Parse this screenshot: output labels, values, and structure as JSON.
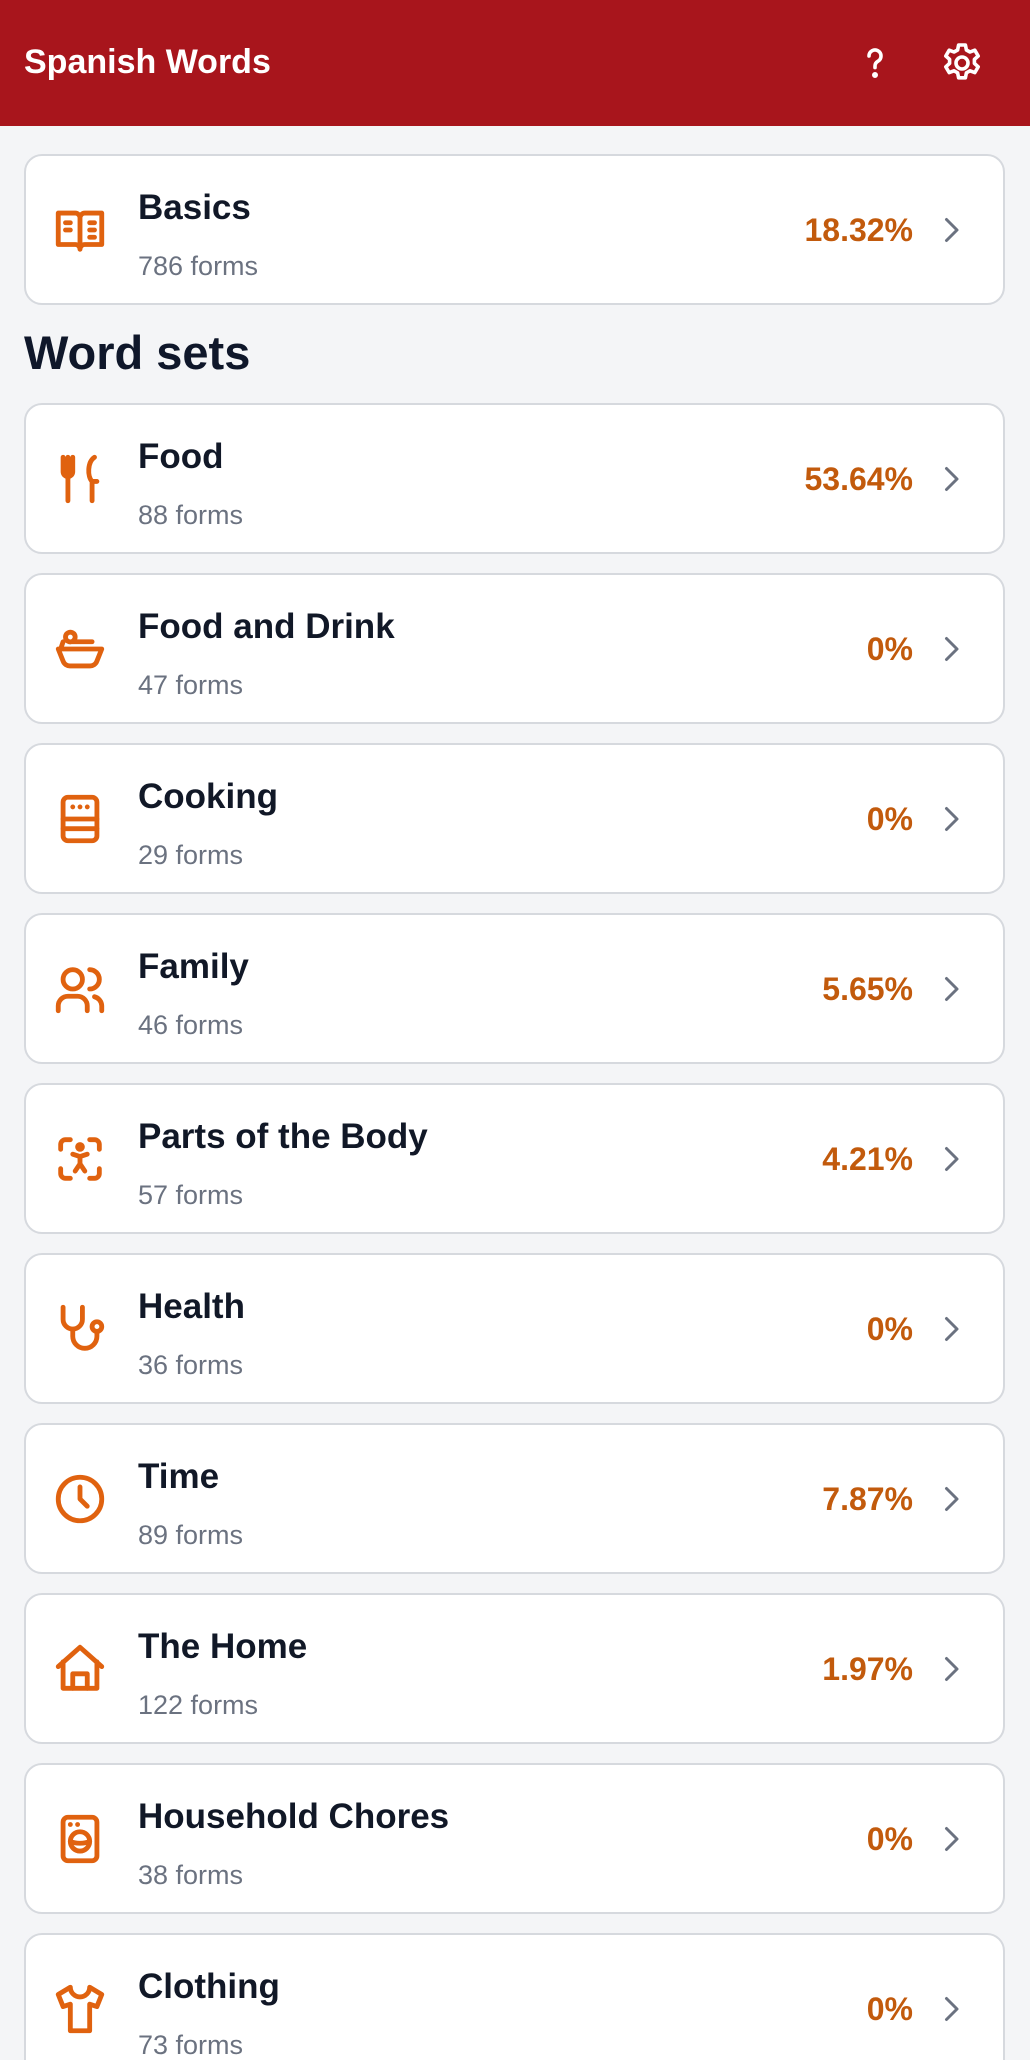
{
  "header": {
    "title": "Spanish Words"
  },
  "basics": {
    "title": "Basics",
    "subtitle": "786 forms",
    "percent": "18.32%"
  },
  "section_title": "Word sets",
  "word_sets": [
    {
      "title": "Food",
      "subtitle": "88 forms",
      "percent": "53.64%"
    },
    {
      "title": "Food and Drink",
      "subtitle": "47 forms",
      "percent": "0%"
    },
    {
      "title": "Cooking",
      "subtitle": "29 forms",
      "percent": "0%"
    },
    {
      "title": "Family",
      "subtitle": "46 forms",
      "percent": "5.65%"
    },
    {
      "title": "Parts of the Body",
      "subtitle": "57 forms",
      "percent": "4.21%"
    },
    {
      "title": "Health",
      "subtitle": "36 forms",
      "percent": "0%"
    },
    {
      "title": "Time",
      "subtitle": "89 forms",
      "percent": "7.87%"
    },
    {
      "title": "The Home",
      "subtitle": "122 forms",
      "percent": "1.97%"
    },
    {
      "title": "Household Chores",
      "subtitle": "38 forms",
      "percent": "0%"
    },
    {
      "title": "Clothing",
      "subtitle": "73 forms",
      "percent": "0%"
    }
  ]
}
